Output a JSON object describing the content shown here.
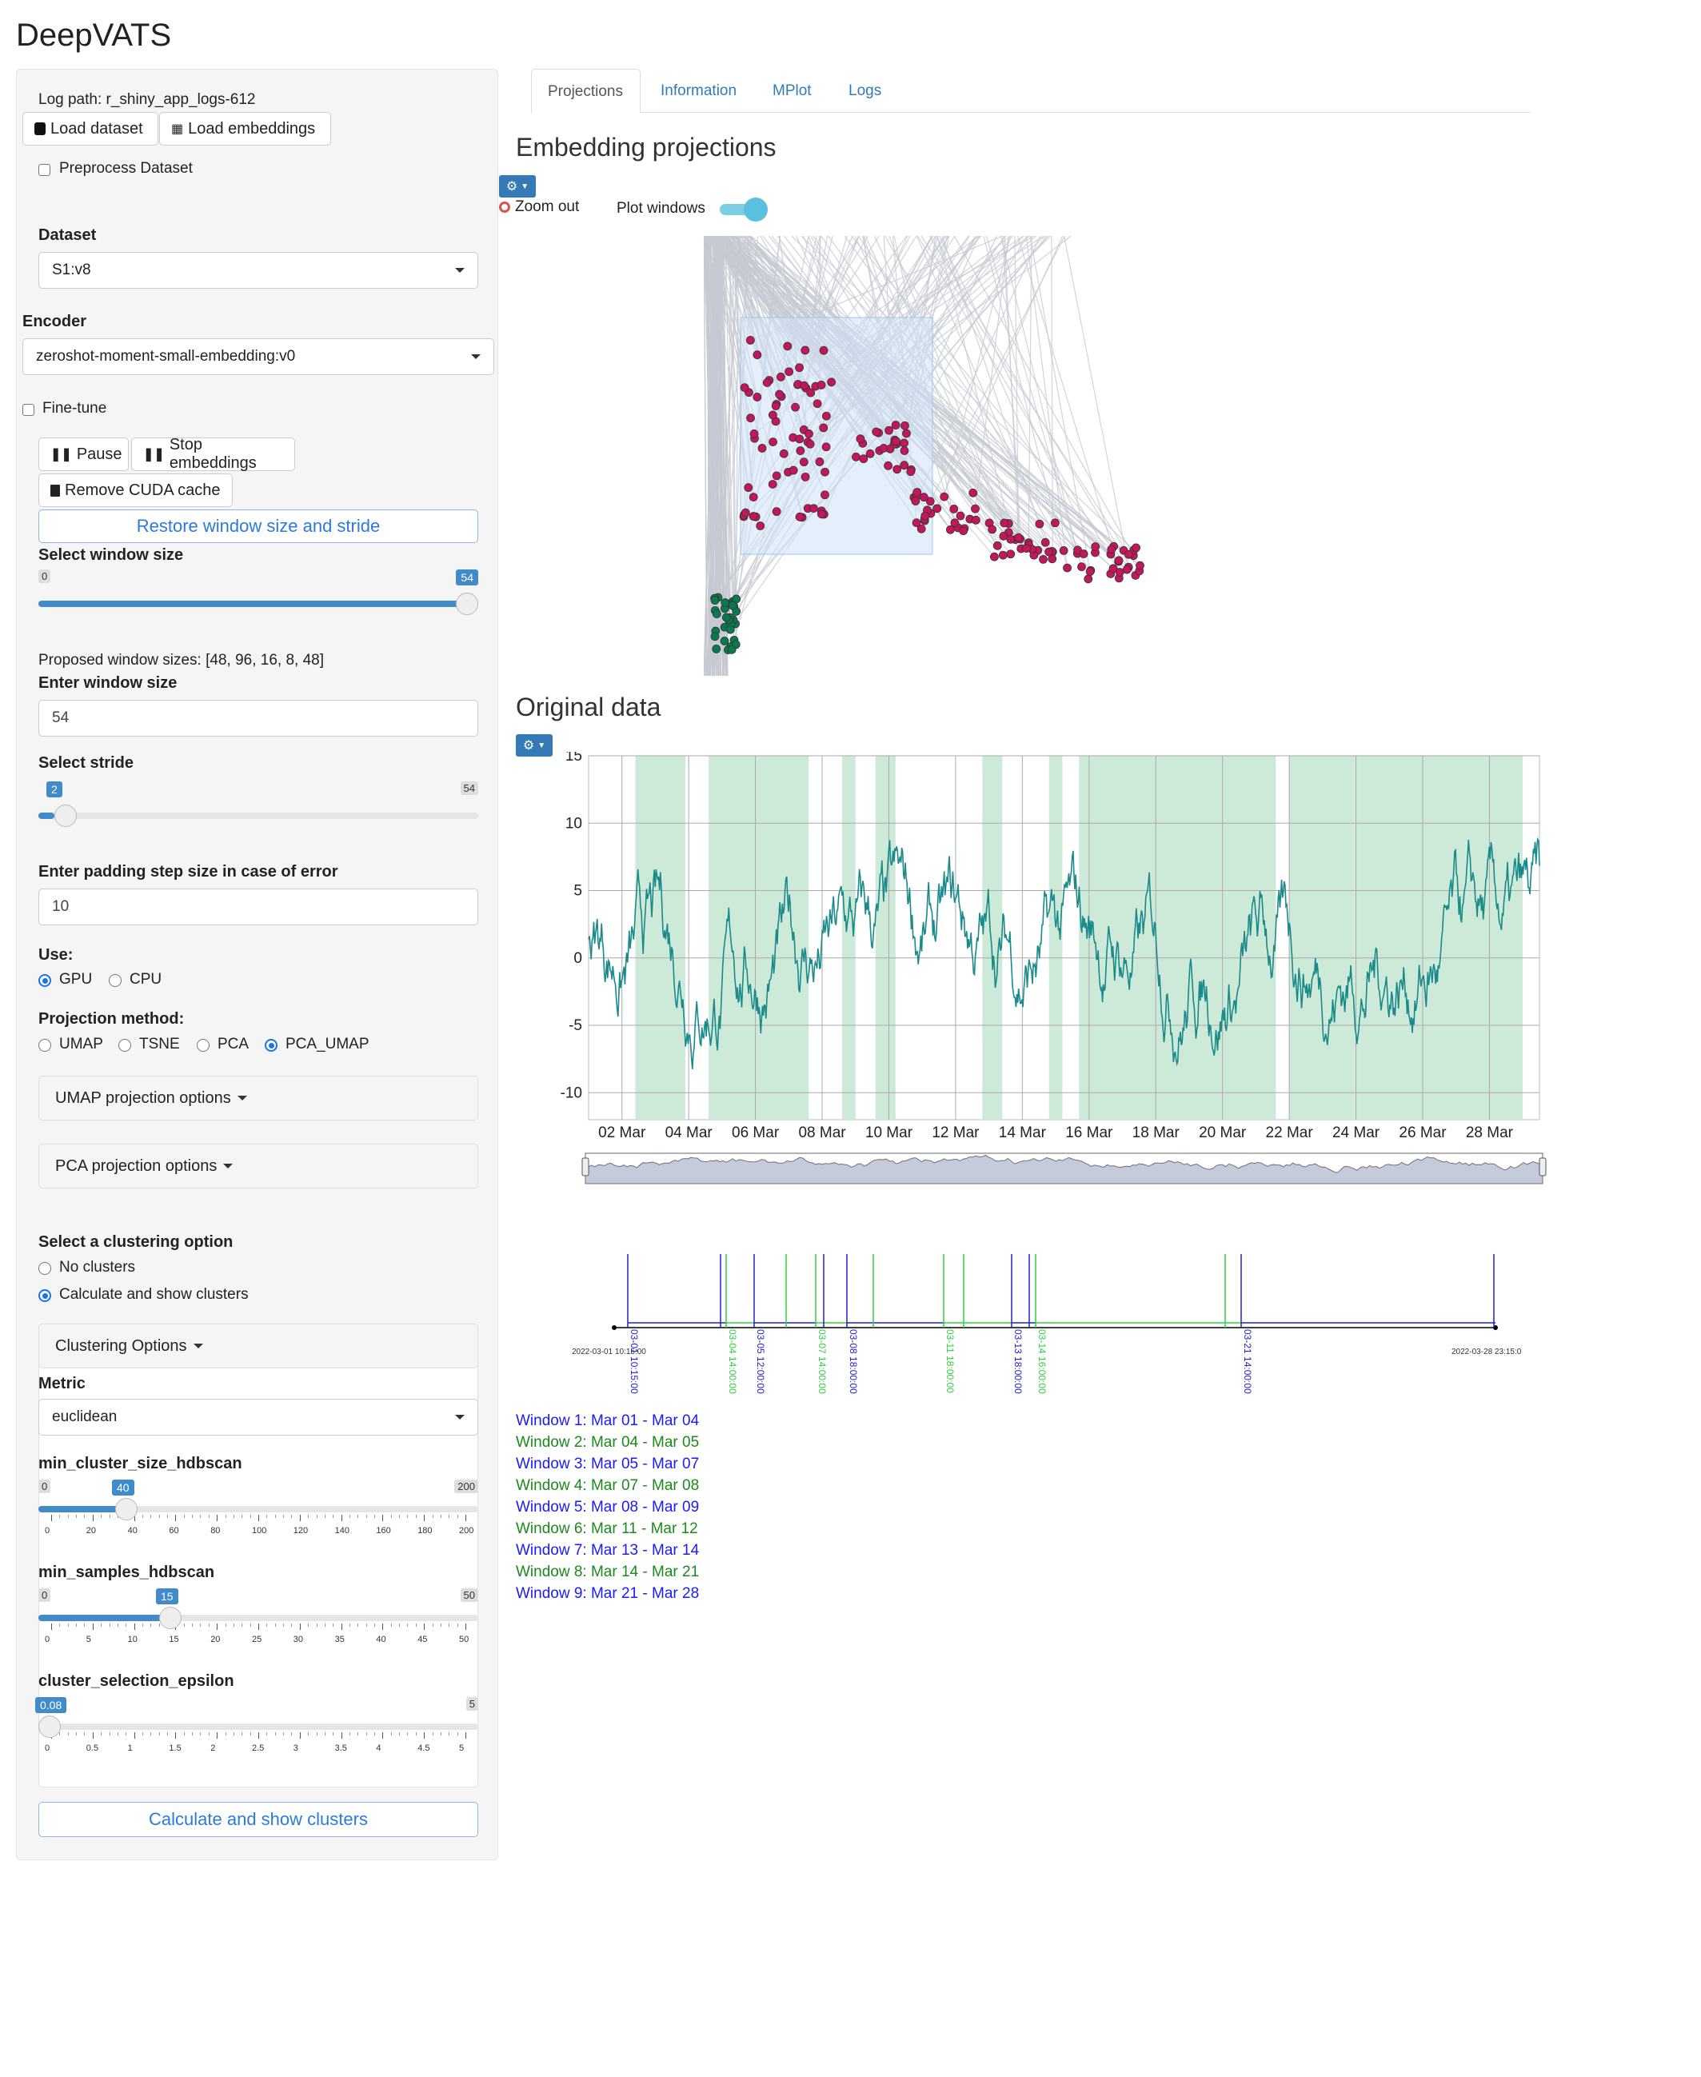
{
  "app": {
    "title": "DeepVATS"
  },
  "sidebar": {
    "log_path": "Log path: r_shiny_app_logs-612",
    "load_dataset": "Load dataset",
    "load_embeddings": "Load embeddings",
    "preprocess": "Preprocess Dataset",
    "dataset_label": "Dataset",
    "dataset_value": "S1:v8",
    "encoder_label": "Encoder",
    "encoder_value": "zeroshot-moment-small-embedding:v0",
    "fine_tune": "Fine-tune",
    "pause": "Pause",
    "stop_embeddings": "Stop embeddings",
    "remove_cuda": "Remove CUDA cache",
    "restore": "Restore window size and stride",
    "window_size_label": "Select window size",
    "window_size": {
      "min": "0",
      "max": "54",
      "value": "54",
      "fraction": 1.0
    },
    "proposed": "Proposed window sizes: [48, 96, 16, 8, 48]",
    "enter_window_label": "Enter window size",
    "enter_window_value": "54",
    "stride_label": "Select stride",
    "stride": {
      "min": "0",
      "max": "54",
      "value": "2",
      "fraction": 0.037
    },
    "padding_label": "Enter padding step size in case of error",
    "padding_value": "10",
    "use_label": "Use:",
    "use_gpu": "GPU",
    "use_cpu": "CPU",
    "projection_label": "Projection method:",
    "proj_umap": "UMAP",
    "proj_tsne": "TSNE",
    "proj_pca": "PCA",
    "proj_pca_umap": "PCA_UMAP",
    "umap_options": "UMAP projection options",
    "pca_options": "PCA projection options",
    "clustering_label": "Select a clustering option",
    "no_clusters": "No clusters",
    "calc_clusters": "Calculate and show clusters",
    "clustering_options": "Clustering Options",
    "metric_label": "Metric",
    "metric_value": "euclidean",
    "min_cluster_label": "min_cluster_size_hdbscan",
    "min_cluster": {
      "min": "0",
      "max": "200",
      "value": "40",
      "fraction": 0.2,
      "ticks": [
        "0",
        "20",
        "40",
        "60",
        "80",
        "100",
        "120",
        "140",
        "160",
        "180",
        "200"
      ]
    },
    "min_samples_label": "min_samples_hdbscan",
    "min_samples": {
      "min": "0",
      "max": "50",
      "value": "15",
      "fraction": 0.3,
      "ticks": [
        "0",
        "5",
        "10",
        "15",
        "20",
        "25",
        "30",
        "35",
        "40",
        "45",
        "50"
      ]
    },
    "epsilon_label": "cluster_selection_epsilon",
    "epsilon": {
      "min": "0",
      "max": "5",
      "value": "0.08",
      "fraction": 0.016,
      "ticks": [
        "0",
        "0.5",
        "1",
        "1.5",
        "2",
        "2.5",
        "3",
        "3.5",
        "4",
        "4.5",
        "5"
      ]
    },
    "calc_button": "Calculate and show clusters"
  },
  "tabs": [
    {
      "label": "Projections",
      "active": true
    },
    {
      "label": "Information",
      "active": false
    },
    {
      "label": "MPlot",
      "active": false
    },
    {
      "label": "Logs",
      "active": false
    }
  ],
  "projections": {
    "title": "Embedding projections",
    "zoom_out": "Zoom out",
    "plot_windows": "Plot windows"
  },
  "original": {
    "title": "Original data"
  },
  "chart_data": {
    "type": "line",
    "x": [
      "02 Mar",
      "04 Mar",
      "06 Mar",
      "08 Mar",
      "10 Mar",
      "12 Mar",
      "14 Mar",
      "16 Mar",
      "18 Mar",
      "20 Mar",
      "22 Mar",
      "24 Mar",
      "26 Mar",
      "28 Mar"
    ],
    "y_ticks": [
      "15",
      "10",
      "5",
      "0",
      "-5",
      "-10"
    ],
    "ylim": [
      -12,
      15
    ],
    "series_color": "#1a8a8a",
    "shaded_color": "#cde9d8",
    "shaded_regions_days": [
      [
        1.4,
        2.9
      ],
      [
        3.6,
        6.6
      ],
      [
        7.6,
        8.0
      ],
      [
        8.6,
        9.2
      ],
      [
        11.8,
        12.4
      ],
      [
        13.8,
        14.2
      ],
      [
        14.7,
        20.6
      ],
      [
        21.0,
        28.0
      ]
    ],
    "grid": true
  },
  "timeline": {
    "start_label": "2022-03-01 10:15:00",
    "end_label": "2022-03-28 23:15:0",
    "markers": [
      {
        "label": "03-01 10:15:00",
        "color": "blue"
      },
      {
        "label": "03-04 14:00:00",
        "color": "green"
      },
      {
        "label": "03-05 12:00:00",
        "color": "blue"
      },
      {
        "label": "03-07 14:00:00",
        "color": "green"
      },
      {
        "label": "03-08 18:00:00",
        "color": "blue"
      },
      {
        "label": "03-11 18:00:00",
        "color": "green"
      },
      {
        "label": "03-13 18:00:00",
        "color": "blue"
      },
      {
        "label": "03-14 16:00:00",
        "color": "green"
      },
      {
        "label": "03-21 14:00:00",
        "color": "blue"
      }
    ]
  },
  "windows": [
    {
      "label": "Window 1: Mar 01 - Mar 04",
      "color": "#1a1aff"
    },
    {
      "label": "Window 2: Mar 04 - Mar 05",
      "color": "#1a8a1a"
    },
    {
      "label": "Window 3: Mar 05 - Mar 07",
      "color": "#1a1aff"
    },
    {
      "label": "Window 4: Mar 07 - Mar 08",
      "color": "#1a8a1a"
    },
    {
      "label": "Window 5: Mar 08 - Mar 09",
      "color": "#1a1aff"
    },
    {
      "label": "Window 6: Mar 11 - Mar 12",
      "color": "#1a8a1a"
    },
    {
      "label": "Window 7: Mar 13 - Mar 14",
      "color": "#1a1aff"
    },
    {
      "label": "Window 8: Mar 14 - Mar 21",
      "color": "#1a8a1a"
    },
    {
      "label": "Window 9: Mar 21 - Mar 28",
      "color": "#1a1aff"
    }
  ],
  "colors": {
    "accent": "#428bca",
    "link": "#337ab7",
    "cluster1": "#c2185b",
    "cluster2": "#0a7a4e",
    "toggle": "#5bc0de"
  }
}
